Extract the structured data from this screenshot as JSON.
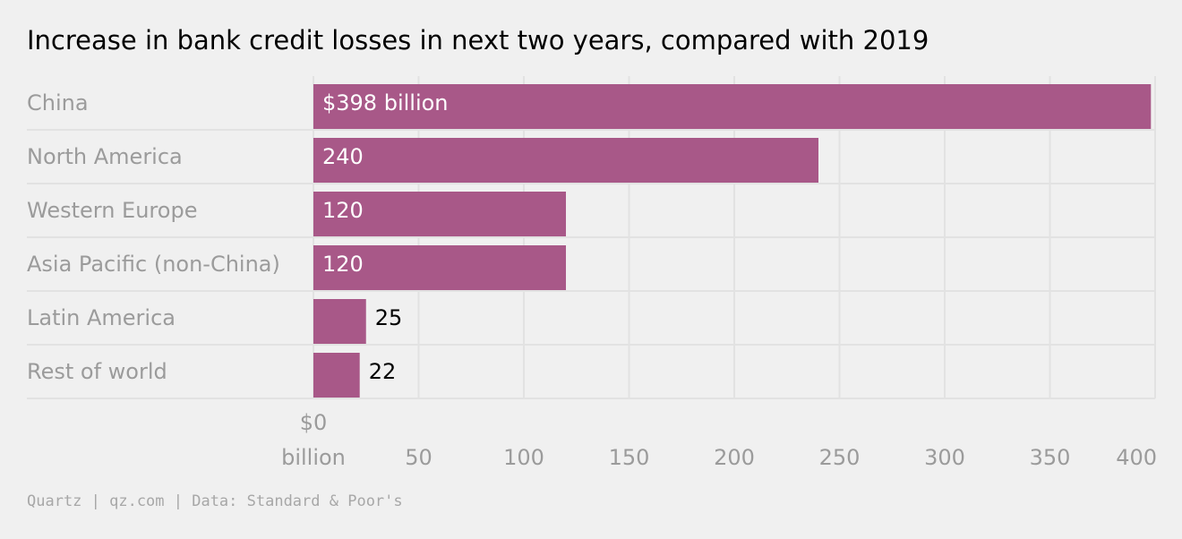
{
  "title": "Increase in bank credit losses in next two years, compared with 2019",
  "footer": "Quartz | qz.com | Data: Standard & Poor's",
  "colors": {
    "bar": "#a85888",
    "background": "#f0f0f0",
    "grid": "#e2e2e2",
    "muted_text": "#9b9b9b"
  },
  "chart_data": {
    "type": "bar",
    "orientation": "horizontal",
    "title": "Increase in bank credit losses in next two years, compared with 2019",
    "categories": [
      "China",
      "North America",
      "Western Europe",
      "Asia Pacific (non-China)",
      "Latin America",
      "Rest of world"
    ],
    "values": [
      398,
      240,
      120,
      120,
      25,
      22
    ],
    "data_labels": [
      "$398 billion",
      "240",
      "120",
      "120",
      "25",
      "22"
    ],
    "xlim": [
      0,
      400
    ],
    "x_ticks": [
      0,
      50,
      100,
      150,
      200,
      250,
      300,
      350,
      400
    ],
    "x_tick_labels": [
      [
        "$0",
        "billion"
      ],
      [
        "50"
      ],
      [
        "100"
      ],
      [
        "150"
      ],
      [
        "200"
      ],
      [
        "250"
      ],
      [
        "300"
      ],
      [
        "350"
      ],
      [
        "400"
      ]
    ],
    "grid": true
  }
}
